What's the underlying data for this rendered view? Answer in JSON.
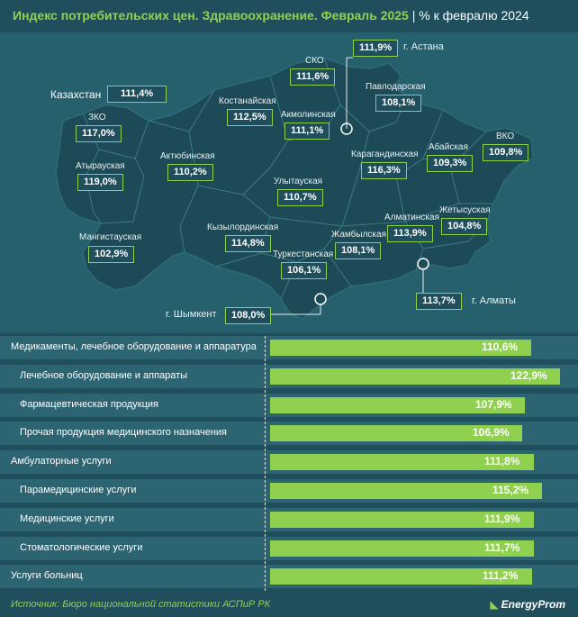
{
  "title": "Индекс потребительских цен. Здравоохранение. Февраль 2025",
  "subtitle": "| % к февралю 2024",
  "kazakhstan": {
    "label": "Казахстан",
    "value": "111,4%"
  },
  "regions": [
    {
      "name": "ЗКО",
      "value": "117,0%"
    },
    {
      "name": "Атырауская",
      "value": "119,0%"
    },
    {
      "name": "Мангистауская",
      "value": "102,9%"
    },
    {
      "name": "Актюбинская",
      "value": "110,2%"
    },
    {
      "name": "Костанайская",
      "value": "112,5%"
    },
    {
      "name": "СКО",
      "value": "111,6%"
    },
    {
      "name": "г. Астана",
      "value": "111,9%"
    },
    {
      "name": "Акмолинская",
      "value": "111,1%"
    },
    {
      "name": "Павлодарская",
      "value": "108,1%"
    },
    {
      "name": "Карагандинская",
      "value": "116,3%"
    },
    {
      "name": "Абайская",
      "value": "109,3%"
    },
    {
      "name": "ВКО",
      "value": "109,8%"
    },
    {
      "name": "Улытауская",
      "value": "110,7%"
    },
    {
      "name": "Кызылординская",
      "value": "114,8%"
    },
    {
      "name": "Туркестанская",
      "value": "106,1%"
    },
    {
      "name": "Жамбылская",
      "value": "108,1%"
    },
    {
      "name": "Алматинская",
      "value": "113,9%"
    },
    {
      "name": "Жетысуская",
      "value": "104,8%"
    },
    {
      "name": "г. Алматы",
      "value": "113,7%"
    },
    {
      "name": "г. Шымкент",
      "value": "108,0%"
    }
  ],
  "chart_data": {
    "type": "bar",
    "orientation": "horizontal",
    "categories": [
      "Медикаменты, лечебное оборудование и аппаратура",
      "Лечебное оборудование и аппараты",
      "Фармацевтическая продукция",
      "Прочая продукция медицинского назначения",
      "Амбулаторные услуги",
      "Парамедицинские услуги",
      "Медицинские услуги",
      "Стоматологические услуги",
      "Услуги больниц"
    ],
    "values": [
      110.6,
      122.9,
      107.9,
      106.9,
      111.8,
      115.2,
      111.9,
      111.7,
      111.2
    ],
    "value_labels": [
      "110,6%",
      "122,9%",
      "107,9%",
      "106,9%",
      "111,8%",
      "115,2%",
      "111,9%",
      "111,7%",
      "111,2%"
    ],
    "indent": [
      false,
      true,
      true,
      true,
      false,
      true,
      true,
      true,
      false
    ],
    "xlim": [
      0,
      122.9
    ],
    "bar_color": "#8fd14f"
  },
  "source": "Источник: Бюро национальной статистики АСПиР РК",
  "logo": "EnergyProm",
  "colors": {
    "background": "#1f4f5c",
    "map": "#1c4a56",
    "accent": "#8fd14f"
  }
}
